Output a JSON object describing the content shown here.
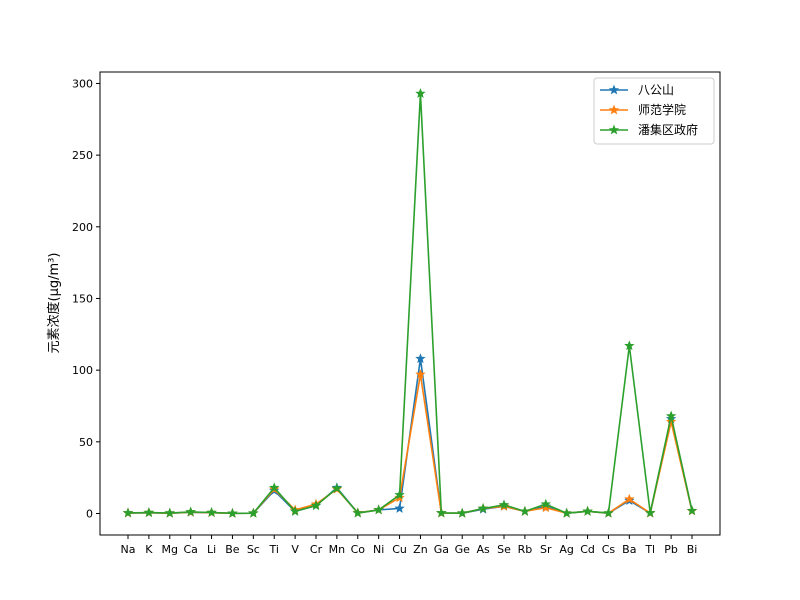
{
  "chart_data": {
    "type": "line",
    "title": "",
    "xlabel": "",
    "ylabel": "元素浓度(μg/m³)",
    "categories": [
      "Na",
      "K",
      "Mg",
      "Ca",
      "Li",
      "Be",
      "Sc",
      "Ti",
      "V",
      "Cr",
      "Mn",
      "Co",
      "Ni",
      "Cu",
      "Zn",
      "Ga",
      "Ge",
      "As",
      "Se",
      "Rb",
      "Sr",
      "Ag",
      "Cd",
      "Cs",
      "Ba",
      "Tl",
      "Pb",
      "Bi"
    ],
    "ylim": [
      -15,
      308
    ],
    "yticks": [
      0,
      50,
      100,
      150,
      200,
      250,
      300
    ],
    "grid": false,
    "legend_position": "top-right",
    "marker": "star",
    "series": [
      {
        "name": "八公山",
        "color": "#1f77b4",
        "values": [
          0.3,
          0.5,
          0.2,
          0.8,
          0.6,
          0.1,
          0.2,
          16,
          1.5,
          5.5,
          18,
          0.4,
          2.5,
          3.5,
          108,
          0.3,
          0.2,
          3,
          5,
          1.5,
          5,
          0.2,
          1.5,
          0.2,
          9,
          0.3,
          66,
          1.8
        ]
      },
      {
        "name": "师范学院",
        "color": "#ff7f0e",
        "values": [
          0.3,
          0.6,
          0.2,
          0.9,
          0.6,
          0.1,
          0.2,
          17,
          2.5,
          6.5,
          17,
          0.5,
          2.5,
          11,
          97,
          0.3,
          0.2,
          3.5,
          5,
          1.5,
          4,
          0.2,
          1.5,
          0.2,
          10,
          0.3,
          64,
          1.8
        ]
      },
      {
        "name": "潘集区政府",
        "color": "#2ca02c",
        "values": [
          0.4,
          0.7,
          0.3,
          1.1,
          0.7,
          0.1,
          0.2,
          18,
          1.5,
          5.5,
          17.5,
          0.3,
          2.5,
          13,
          293,
          0.4,
          0.2,
          3.5,
          6,
          1.5,
          6.5,
          0.2,
          1.5,
          0.3,
          117,
          0.4,
          68,
          2
        ]
      }
    ]
  }
}
